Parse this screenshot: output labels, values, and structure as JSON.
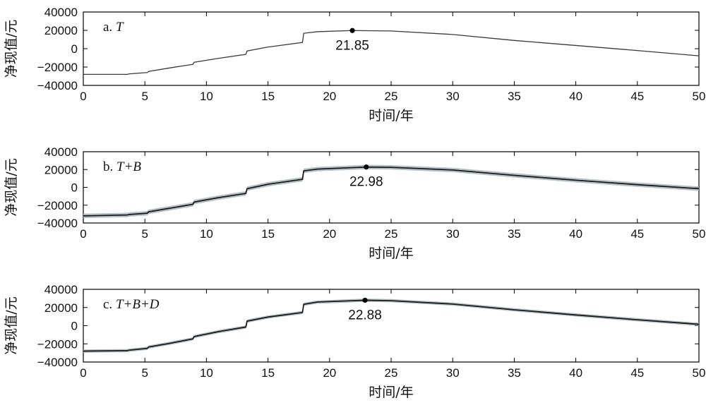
{
  "chart_data": [
    {
      "type": "line",
      "panel_prefix": "a. ",
      "panel_name": "T",
      "xlabel": "时间/年",
      "ylabel": "净现值/元",
      "xlim": [
        0,
        50
      ],
      "ylim": [
        -40000,
        40000
      ],
      "xticks": [
        0,
        5,
        10,
        15,
        20,
        25,
        30,
        35,
        40,
        45,
        50
      ],
      "yticks": [
        40000,
        20000,
        0,
        -20000,
        -40000
      ],
      "band": false,
      "line_color": "#3a3a3a",
      "peak": {
        "x": 21.85,
        "y": 19800,
        "label": "21.85"
      },
      "series": [
        {
          "values": [
            [
              0,
              -28000
            ],
            [
              3.6,
              -28000
            ],
            [
              3.7,
              -27500
            ],
            [
              5.2,
              -26000
            ],
            [
              5.3,
              -24800
            ],
            [
              7,
              -21000
            ],
            [
              8.9,
              -17000
            ],
            [
              9.0,
              -14800
            ],
            [
              11,
              -10500
            ],
            [
              13.2,
              -6200
            ],
            [
              13.3,
              -2500
            ],
            [
              15,
              1800
            ],
            [
              17.8,
              6800
            ],
            [
              17.9,
              16800
            ],
            [
              19,
              18500
            ],
            [
              21.85,
              19800
            ],
            [
              25,
              19300
            ],
            [
              30,
              15500
            ],
            [
              35,
              9000
            ],
            [
              40,
              3500
            ],
            [
              45,
              -2000
            ],
            [
              50,
              -7800
            ]
          ]
        }
      ]
    },
    {
      "type": "line",
      "panel_prefix": "b. ",
      "panel_name": "T+B",
      "xlabel": "时间/年",
      "ylabel": "净现值/元",
      "xlim": [
        0,
        50
      ],
      "ylim": [
        -40000,
        40000
      ],
      "xticks": [
        0,
        5,
        10,
        15,
        20,
        25,
        30,
        35,
        40,
        45,
        50
      ],
      "yticks": [
        40000,
        20000,
        0,
        -20000,
        -40000
      ],
      "band": true,
      "band_width": 2500,
      "band_color": "#a9b6bc",
      "line_color": "#1a1a1a",
      "peak": {
        "x": 22.98,
        "y": 22800,
        "label": "22.98"
      },
      "series": [
        {
          "values": [
            [
              0,
              -32000
            ],
            [
              3.6,
              -31000
            ],
            [
              3.7,
              -30500
            ],
            [
              5.2,
              -29000
            ],
            [
              5.3,
              -27500
            ],
            [
              7,
              -23500
            ],
            [
              8.9,
              -19000
            ],
            [
              9.0,
              -16500
            ],
            [
              11,
              -11500
            ],
            [
              13.2,
              -6800
            ],
            [
              13.3,
              -1500
            ],
            [
              15,
              3500
            ],
            [
              17.8,
              9000
            ],
            [
              17.9,
              18500
            ],
            [
              19,
              20500
            ],
            [
              22.98,
              22800
            ],
            [
              25,
              22500
            ],
            [
              30,
              19500
            ],
            [
              35,
              13500
            ],
            [
              40,
              8000
            ],
            [
              45,
              3000
            ],
            [
              50,
              -1500
            ]
          ]
        }
      ]
    },
    {
      "type": "line",
      "panel_prefix": "c. ",
      "panel_name": "T+B+D",
      "xlabel": "时间/年",
      "ylabel": "净现值/元",
      "xlim": [
        0,
        50
      ],
      "ylim": [
        -40000,
        40000
      ],
      "xticks": [
        0,
        5,
        10,
        15,
        20,
        25,
        30,
        35,
        40,
        45,
        50
      ],
      "yticks": [
        40000,
        20000,
        0,
        -20000,
        -40000
      ],
      "band": true,
      "band_width": 1800,
      "band_color": "#a9b6bc",
      "line_color": "#1a1a1a",
      "peak": {
        "x": 22.88,
        "y": 28000,
        "label": "22.88"
      },
      "series": [
        {
          "values": [
            [
              0,
              -28000
            ],
            [
              3.6,
              -27500
            ],
            [
              3.7,
              -27000
            ],
            [
              5.2,
              -25000
            ],
            [
              5.3,
              -23500
            ],
            [
              7,
              -19500
            ],
            [
              8.9,
              -14500
            ],
            [
              9.0,
              -12000
            ],
            [
              11,
              -6500
            ],
            [
              13.2,
              -1500
            ],
            [
              13.3,
              5000
            ],
            [
              15,
              9500
            ],
            [
              17.8,
              14500
            ],
            [
              17.9,
              23500
            ],
            [
              19,
              26000
            ],
            [
              22.88,
              28000
            ],
            [
              25,
              27500
            ],
            [
              30,
              23800
            ],
            [
              35,
              17500
            ],
            [
              40,
              11800
            ],
            [
              45,
              6500
            ],
            [
              50,
              1500
            ]
          ]
        }
      ]
    }
  ]
}
